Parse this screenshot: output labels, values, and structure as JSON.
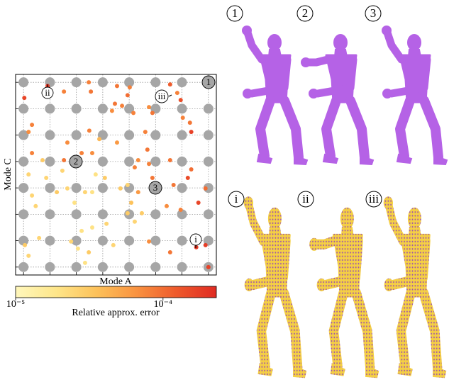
{
  "chart_data": {
    "type": "scatter",
    "xlabel": "Mode A",
    "ylabel": "Mode C",
    "xlim": [
      -0.3,
      7.3
    ],
    "ylim": [
      -0.3,
      7.3
    ],
    "xticks": [
      0,
      1,
      2,
      3,
      4,
      5,
      6,
      7
    ],
    "yticks": [
      0,
      1,
      2,
      3,
      4,
      5,
      6,
      7
    ],
    "grid": true,
    "series": [
      {
        "color": "#a6a6a6",
        "x": [
          0,
          1,
          2,
          3,
          4,
          5,
          6,
          7,
          0,
          1,
          2,
          3,
          4,
          5,
          6,
          7,
          0,
          1,
          2,
          3,
          4,
          5,
          6,
          7,
          0,
          1,
          2,
          3,
          4,
          5,
          6,
          7,
          0,
          1,
          2,
          3,
          4,
          5,
          6,
          7,
          0,
          1,
          2,
          3,
          4,
          5,
          6,
          7,
          0,
          1,
          2,
          3,
          4,
          5,
          6,
          7,
          0,
          1,
          2,
          3,
          4,
          5,
          6,
          7
        ],
        "y": [
          0,
          0,
          0,
          0,
          0,
          0,
          0,
          0,
          1,
          1,
          1,
          1,
          1,
          1,
          1,
          1,
          2,
          2,
          2,
          2,
          2,
          2,
          2,
          2,
          3,
          3,
          3,
          3,
          3,
          3,
          3,
          3,
          4,
          4,
          4,
          4,
          4,
          4,
          4,
          4,
          5,
          5,
          5,
          5,
          5,
          5,
          5,
          5,
          6,
          6,
          6,
          6,
          6,
          6,
          6,
          6,
          7,
          7,
          7,
          7,
          7,
          7,
          7,
          7
        ]
      },
      {
        "x": [
          0.03,
          0.91,
          1.53,
          2.47,
          2.55,
          3.54,
          4.02,
          3.94,
          3.46,
          3.73,
          3.35,
          4.16,
          4.75,
          4.88,
          5.82,
          5.95,
          5.55,
          6.03,
          6.3,
          6.35,
          0.32,
          0.19,
          2.49,
          1.66,
          2.87,
          3.54,
          4.69,
          4.61,
          1.53,
          0.32,
          0.72,
          1.47,
          2.2,
          2.6,
          4.34,
          4.21,
          4.75,
          4.88,
          5.55,
          6.35,
          6.22,
          5.68,
          0.19,
          0.86,
          2.73,
          3.08,
          2.6,
          2.33,
          3.67,
          3.94,
          4.34,
          0.32,
          1.26,
          1.66,
          1.93,
          0.46,
          4.08,
          3.94,
          4.48,
          4.21,
          5.42,
          5.95,
          6.62,
          6.89,
          2.2,
          2.6,
          3.14,
          1.8,
          2.06,
          2.47,
          2.33,
          3.4,
          4.75,
          5.55,
          6.54,
          6.89,
          7.0,
          0.05,
          0.19,
          0.59
        ],
        "y": [
          6.41,
          6.86,
          6.65,
          7.0,
          6.65,
          6.86,
          6.81,
          6.51,
          6.19,
          6.11,
          5.92,
          5.84,
          6.06,
          5.84,
          6.6,
          6.33,
          6.92,
          5.66,
          5.47,
          5.12,
          5.39,
          5.12,
          5.17,
          4.72,
          4.85,
          4.72,
          4.45,
          5.12,
          4.05,
          4.32,
          4.05,
          3.65,
          4.32,
          4.32,
          4.05,
          3.78,
          3.91,
          3.38,
          4.05,
          3.7,
          3.38,
          3.11,
          3.51,
          3.38,
          3.51,
          3.38,
          2.84,
          2.84,
          2.98,
          3.11,
          2.84,
          2.71,
          2.84,
          2.98,
          2.44,
          2.31,
          2.44,
          2.04,
          2.04,
          1.72,
          2.31,
          2.17,
          2.44,
          2.98,
          1.37,
          1.5,
          1.64,
          0.97,
          0.7,
          0.56,
          0.16,
          0.83,
          0.97,
          0.56,
          0.75,
          0.83,
          0.0,
          0.83,
          0.43,
          1.1
        ],
        "values": [
          0.00016,
          0.00019,
          8e-05,
          8e-05,
          9e-05,
          9e-05,
          8e-05,
          0.0001,
          9e-05,
          8e-05,
          7e-05,
          8e-05,
          7e-05,
          9e-05,
          8e-05,
          0.00014,
          0.00012,
          8e-05,
          9e-05,
          0.00017,
          8e-05,
          7e-05,
          8e-05,
          7e-05,
          4e-05,
          6e-05,
          9e-05,
          8e-05,
          9e-05,
          8e-05,
          3e-05,
          2.5e-05,
          8e-05,
          7e-05,
          7e-05,
          8e-05,
          8e-05,
          9e-05,
          9e-05,
          0.0001,
          0.00015,
          9e-05,
          2.5e-05,
          2.5e-05,
          2e-05,
          3e-05,
          2e-05,
          2.5e-05,
          3e-05,
          2.5e-05,
          6e-05,
          2.5e-05,
          3e-05,
          2.5e-05,
          2e-05,
          2.5e-05,
          3.5e-05,
          3e-05,
          3e-05,
          2.5e-05,
          7e-05,
          8e-05,
          0.00016,
          0.0001,
          2e-05,
          2e-05,
          2.5e-05,
          2.5e-05,
          2e-05,
          3e-05,
          2e-05,
          2.5e-05,
          7e-05,
          9e-05,
          0.00019,
          0.00018,
          0.00017,
          3e-05,
          2.5e-05,
          2.5e-05
        ]
      }
    ],
    "colorbar": {
      "label": "Relative approx. error",
      "log": true,
      "lim": [
        1e-05,
        0.00023
      ],
      "ticks": [
        {
          "value": 1e-05,
          "label": "10⁻⁵"
        },
        {
          "value": 0.0001,
          "label": "10⁻⁴"
        }
      ],
      "colormap": [
        "#fff7bc",
        "#fee68a",
        "#fdc25a",
        "#f99340",
        "#ee5a2c",
        "#e02a22"
      ]
    },
    "annotations": [
      "1",
      "2",
      "3",
      "i",
      "ii",
      "iii"
    ]
  }
}
